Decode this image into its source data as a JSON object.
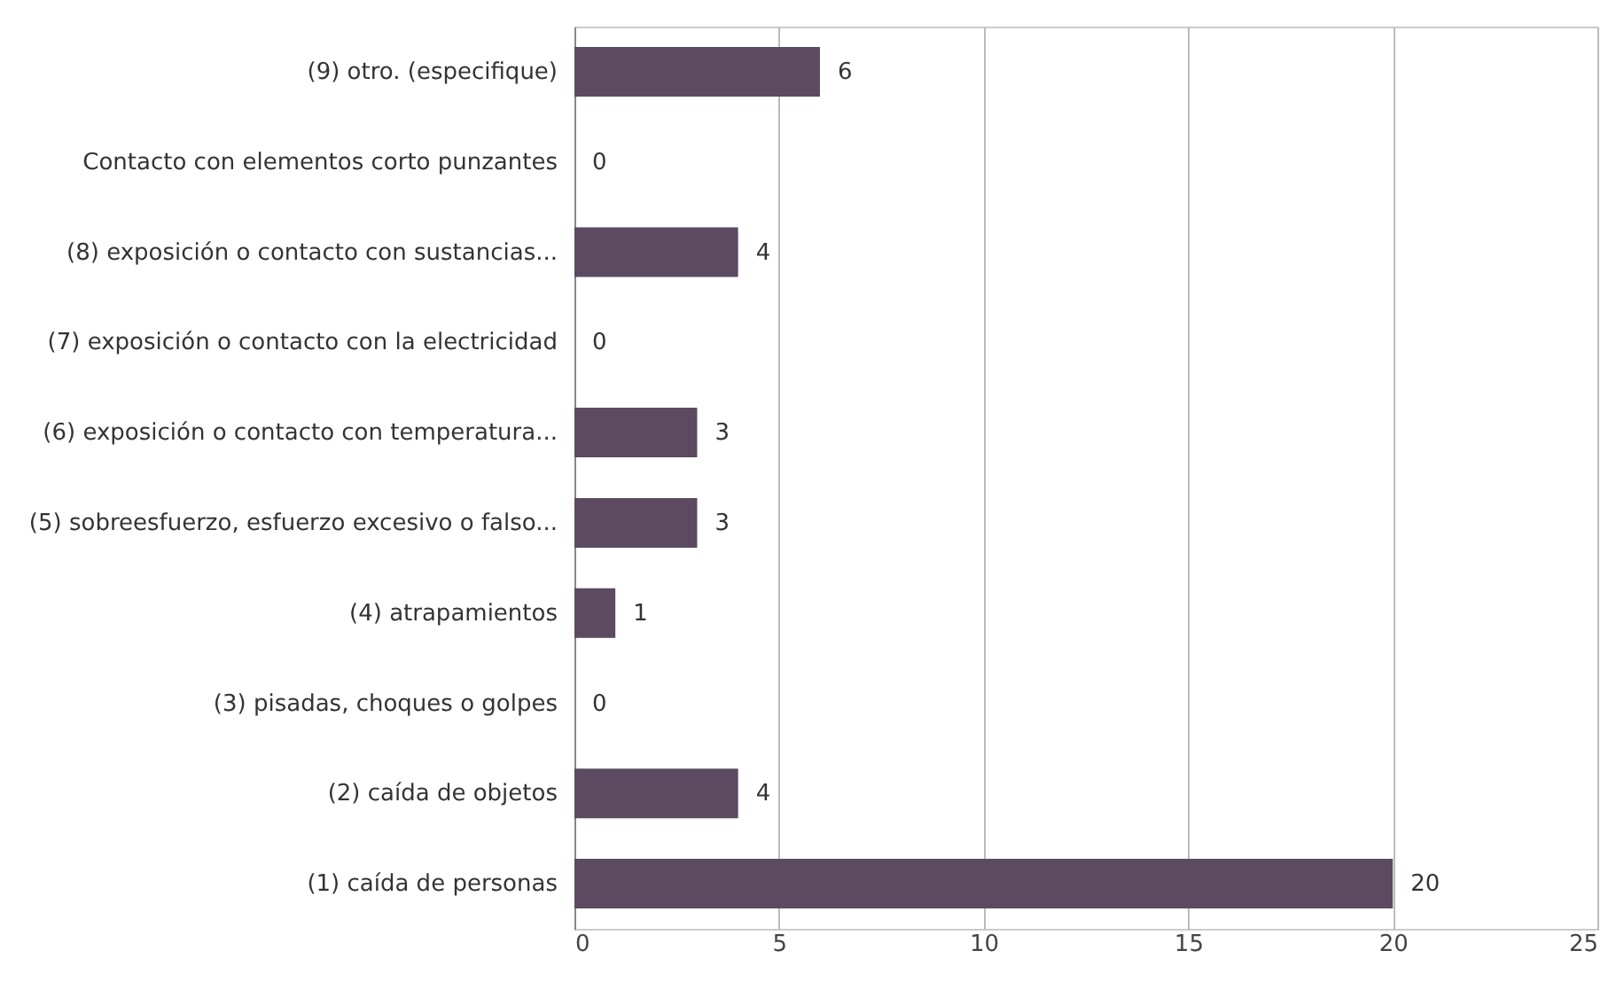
{
  "chart_data": {
    "type": "bar",
    "orientation": "horizontal",
    "categories": [
      "(9) otro. (especifique)",
      "Contacto con elementos corto punzantes",
      "(8) exposición o contacto con sustancias...",
      "(7) exposición o contacto con la electricidad",
      "(6) exposición o contacto con temperatura...",
      "(5) sobreesfuerzo, esfuerzo excesivo o falso...",
      "(4) atrapamientos",
      "(3) pisadas, choques o golpes",
      "(2) caída de objetos",
      "(1) caída de personas"
    ],
    "values": [
      6,
      0,
      4,
      0,
      3,
      3,
      1,
      0,
      4,
      20
    ],
    "color": "#5b4a60",
    "xlim": [
      0,
      25
    ],
    "xticks": [
      0,
      5,
      10,
      15,
      20,
      25
    ],
    "grid": "x",
    "data_labels": true
  }
}
